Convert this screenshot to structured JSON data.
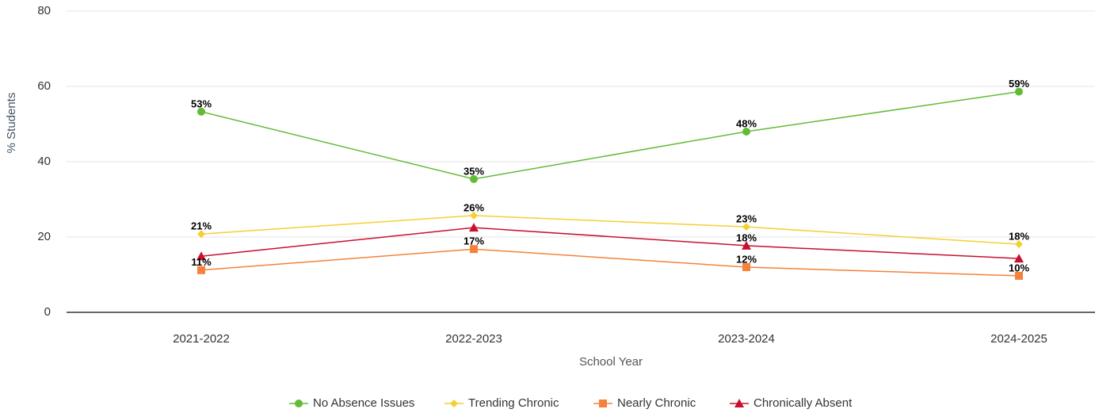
{
  "chart_data": {
    "type": "line",
    "categories": [
      "2021-2022",
      "2022-2023",
      "2023-2024",
      "2024-2025"
    ],
    "x_label": "School Year",
    "y_label": "% Students",
    "ylim": [
      0,
      80
    ],
    "yticks": [
      0,
      20,
      40,
      60,
      80
    ],
    "grid": true,
    "legend": "bottom",
    "series": [
      {
        "name": "No Absence Issues",
        "color": "#62bb35",
        "marker": "circle",
        "values": [
          53.3,
          35.4,
          48,
          58.6
        ],
        "value_labels": [
          "53%",
          "35%",
          "48%",
          "59%"
        ]
      },
      {
        "name": "Trending Chronic",
        "color": "#f5d033",
        "marker": "diamond",
        "values": [
          20.8,
          25.7,
          22.7,
          18.1
        ],
        "value_labels": [
          "21%",
          "26%",
          "23%",
          "18%"
        ]
      },
      {
        "name": "Nearly Chronic",
        "color": "#f5813a",
        "marker": "square",
        "values": [
          11.2,
          16.8,
          12,
          9.7
        ],
        "value_labels": [
          "11%",
          "17%",
          "12%",
          "10%"
        ]
      },
      {
        "name": "Chronically Absent",
        "color": "#c8102e",
        "marker": "triangle",
        "values": [
          14.9,
          22.5,
          17.7,
          14.3
        ],
        "value_labels": [
          null,
          null,
          "18%",
          null
        ]
      }
    ]
  }
}
